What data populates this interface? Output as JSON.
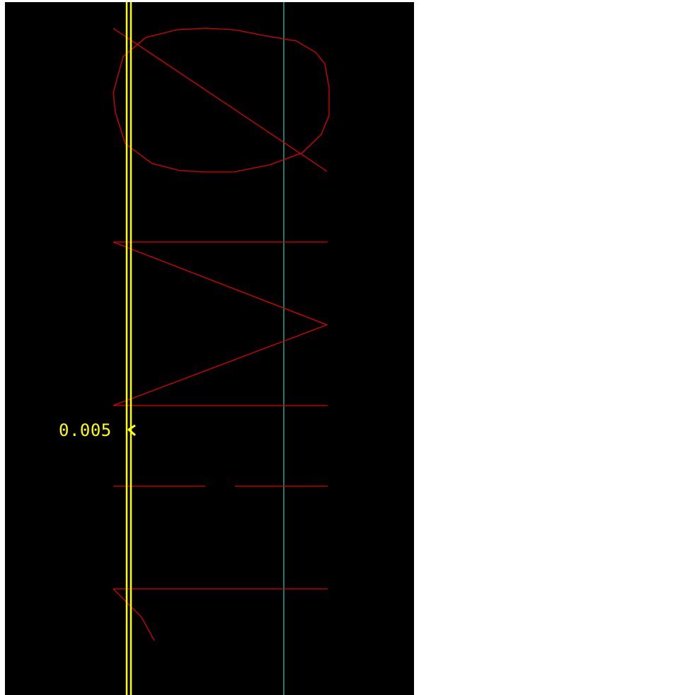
{
  "canvas": {
    "background_color": "#000000",
    "page_background_color": "#ffffff"
  },
  "colors": {
    "guide_line": "#ffff00",
    "reference_line": "#1f7a6a",
    "geometry": "#dd0000"
  },
  "dimension": {
    "label": "0.005",
    "arrow_icon": "arrowhead-left-icon"
  }
}
